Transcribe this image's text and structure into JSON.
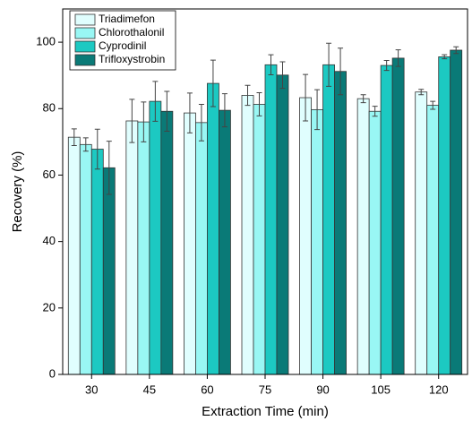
{
  "chart_data": {
    "type": "bar",
    "x_label": "Extraction Time (min)",
    "y_label": "Recovery (%)",
    "categories": [
      "30",
      "45",
      "60",
      "75",
      "90",
      "105",
      "120"
    ],
    "series": [
      {
        "name": "Triadimefon",
        "color": "#e0fefe",
        "values": [
          71.4,
          76.3,
          78.7,
          84.0,
          83.3,
          83.0,
          85.0
        ],
        "errors": [
          2.5,
          6.5,
          6.0,
          3.0,
          7.0,
          1.2,
          0.8
        ]
      },
      {
        "name": "Chlorothalonil",
        "color": "#99f7f4",
        "values": [
          69.2,
          76.0,
          75.8,
          81.3,
          79.7,
          79.2,
          81.0
        ],
        "errors": [
          2.0,
          6.0,
          5.5,
          3.5,
          6.0,
          1.5,
          1.2
        ]
      },
      {
        "name": "Cyprodinil",
        "color": "#1cc9c2",
        "values": [
          67.8,
          82.2,
          87.6,
          93.2,
          93.2,
          93.0,
          95.6
        ],
        "errors": [
          6.0,
          6.0,
          7.0,
          3.0,
          6.5,
          1.5,
          0.6
        ]
      },
      {
        "name": "Trifloxystrobin",
        "color": "#0a7a77",
        "values": [
          62.2,
          79.2,
          79.5,
          90.1,
          91.2,
          95.2,
          97.6
        ],
        "errors": [
          8.0,
          6.0,
          5.0,
          4.0,
          7.0,
          2.5,
          1.0
        ]
      }
    ],
    "ylim": [
      0,
      110
    ],
    "yticks": [
      0,
      20,
      40,
      60,
      80,
      100
    ],
    "legend": "top-left"
  }
}
